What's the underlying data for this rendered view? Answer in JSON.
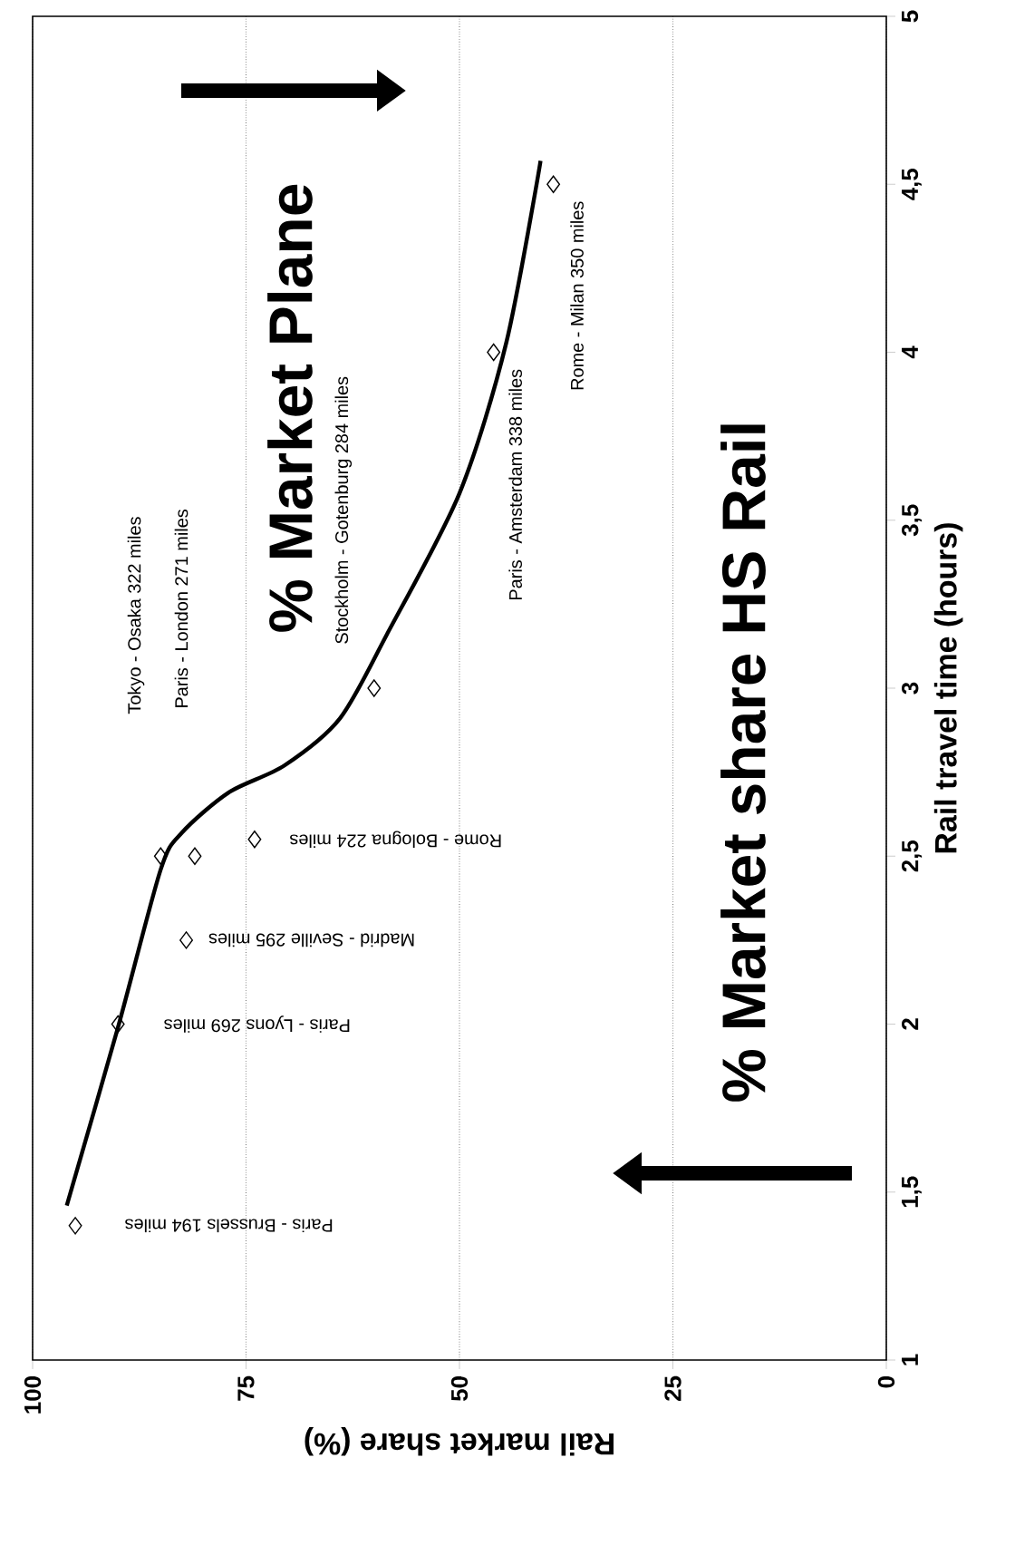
{
  "chart_data": {
    "type": "scatter",
    "xlabel": "Rail market share (%)",
    "ylabel": "Rail travel time (hours)",
    "xlim": [
      100,
      0
    ],
    "ylim": [
      1,
      5
    ],
    "xticks": [
      0,
      25,
      50,
      75,
      100
    ],
    "yticks": [
      1,
      {
        "value": 1.5,
        "label": "1,5"
      },
      2,
      {
        "value": 2.5,
        "label": "2,5"
      },
      3,
      {
        "value": 3.5,
        "label": "3,5"
      },
      4,
      {
        "value": 4.5,
        "label": "4,5"
      },
      5
    ],
    "grid": "x",
    "marker": "diamond",
    "series": [
      {
        "color": "#000000",
        "x": [
          95,
          90,
          82,
          85,
          81,
          74,
          60,
          46,
          39
        ],
        "values": [
          1.4,
          2.0,
          2.25,
          2.5,
          2.5,
          2.55,
          3.0,
          4.0,
          4.5
        ]
      },
      {
        "type": "line",
        "color": "#000000",
        "marker": "none",
        "x": [
          96,
          90,
          85,
          82.5,
          77,
          70.5,
          64,
          58.5,
          50,
          44.5,
          40.5
        ],
        "values": [
          1.46,
          1.99,
          2.46,
          2.57,
          2.69,
          2.77,
          2.91,
          3.16,
          3.58,
          4.03,
          4.57
        ]
      }
    ],
    "annotations": [
      "% Market Plane",
      "% Market share HS Rail",
      {
        "text": "Paris - Brussels 194 miles",
        "x": 95,
        "y": 1.4
      },
      {
        "text": "Paris - Lyons 269 miles",
        "x": 90,
        "y": 2.0
      },
      {
        "text": "Madrid - Seville 295 miles",
        "x": 82,
        "y": 2.25
      },
      "Tokyo - Osaka 322 miles",
      "Paris - London 271 miles",
      {
        "text": "Rome - Bologna 224 miles",
        "x": 74,
        "y": 2.55
      },
      {
        "text": "Stockholm - Gotenburg 284 miles",
        "x": 60,
        "y": 3.0
      },
      {
        "text": "Paris - Amsterdam 338 miles",
        "x": 46,
        "y": 4.0
      },
      {
        "text": "Rome - Milan 350 miles",
        "x": 39,
        "y": 4.5
      }
    ]
  }
}
